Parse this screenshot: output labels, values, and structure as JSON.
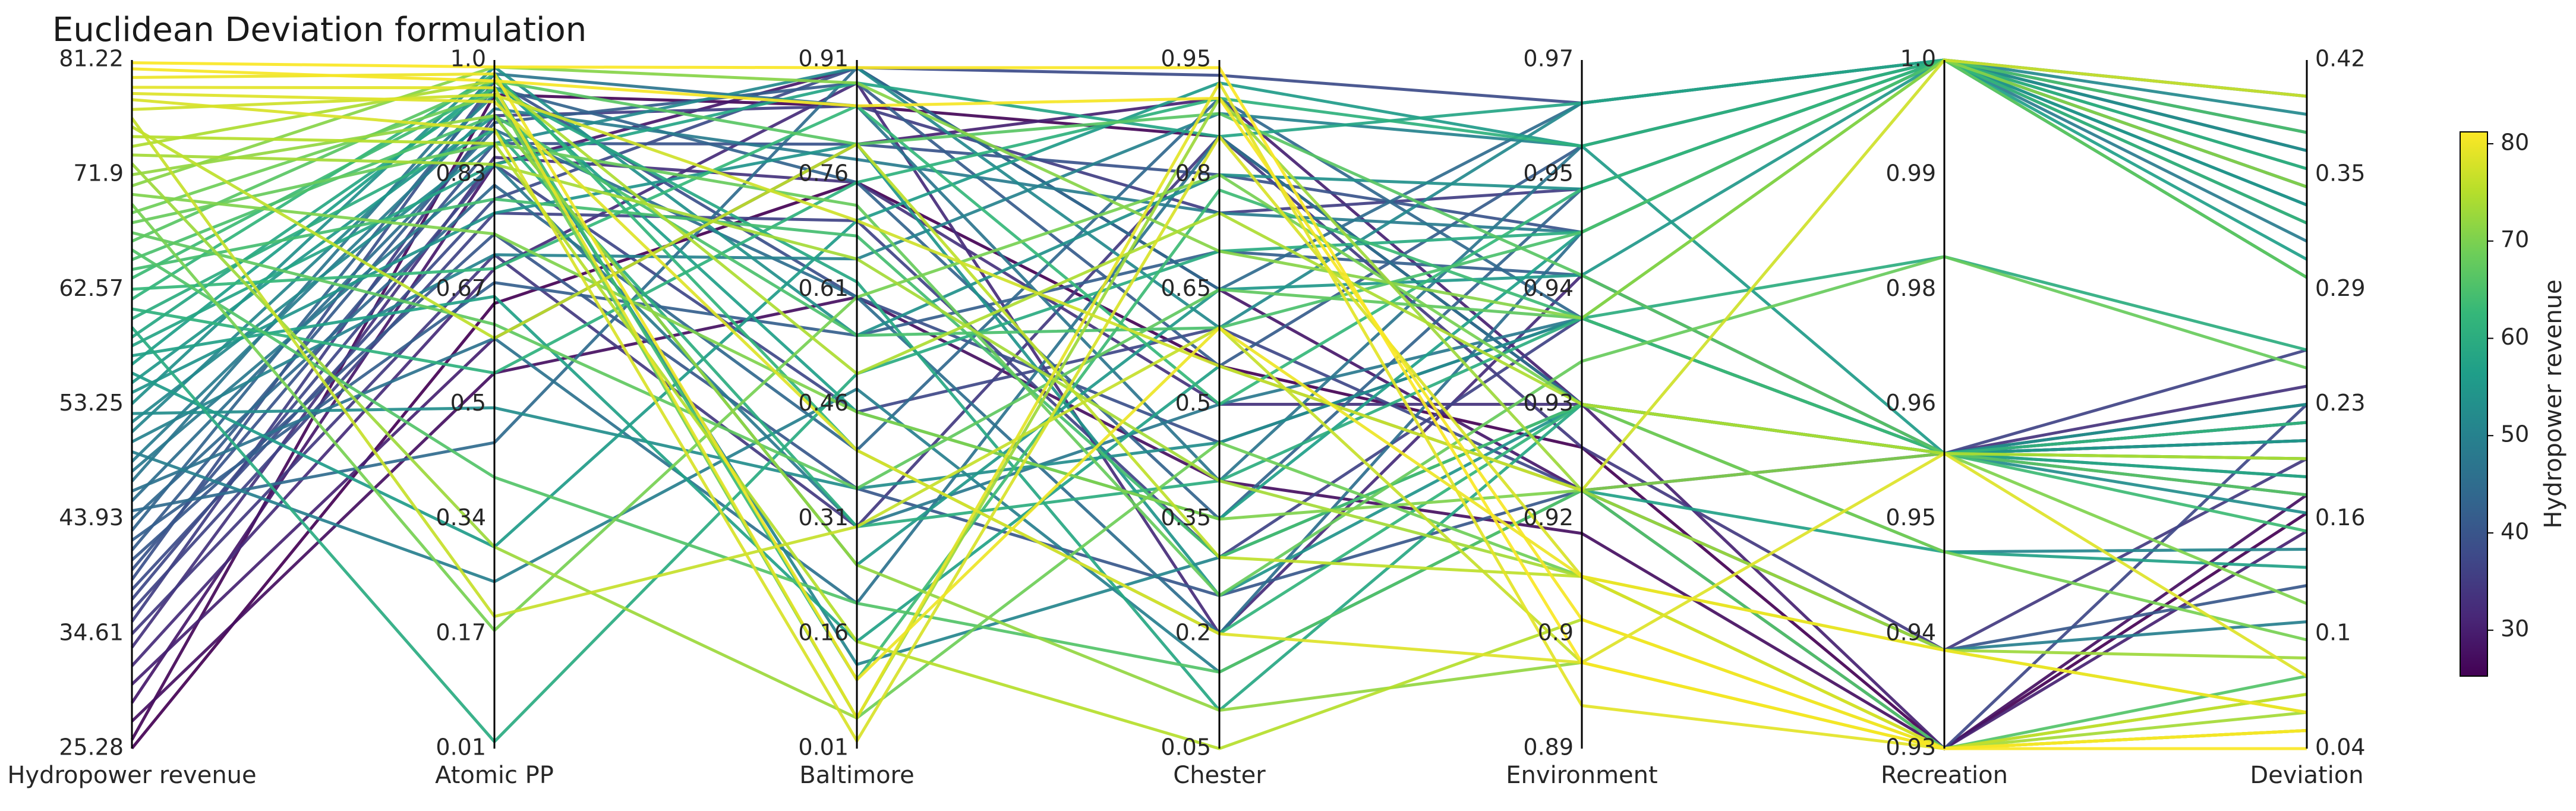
{
  "chart_data": {
    "type": "parallel_coordinates",
    "title": "Euclidean Deviation formulation",
    "color_by": "Hydropower revenue",
    "colormap": "viridis",
    "axes": [
      {
        "name": "Hydropower revenue",
        "ticks": [
          "81.22",
          "71.9",
          "62.57",
          "53.25",
          "43.93",
          "34.61",
          "25.28"
        ],
        "range": [
          25.28,
          81.22
        ]
      },
      {
        "name": "Atomic PP",
        "ticks": [
          "1.0",
          "0.83",
          "0.67",
          "0.5",
          "0.34",
          "0.17",
          "0.01"
        ],
        "range": [
          0.01,
          1.0
        ]
      },
      {
        "name": "Baltimore",
        "ticks": [
          "0.91",
          "0.76",
          "0.61",
          "0.46",
          "0.31",
          "0.16",
          "0.01"
        ],
        "range": [
          0.01,
          0.91
        ]
      },
      {
        "name": "Chester",
        "ticks": [
          "0.95",
          "0.8",
          "0.65",
          "0.5",
          "0.35",
          "0.2",
          "0.05"
        ],
        "range": [
          0.05,
          0.95
        ]
      },
      {
        "name": "Environment",
        "ticks": [
          "0.97",
          "0.95",
          "0.94",
          "0.93",
          "0.92",
          "0.9",
          "0.89"
        ],
        "range": [
          0.89,
          0.97
        ]
      },
      {
        "name": "Recreation",
        "ticks": [
          "1.0",
          "0.99",
          "0.98",
          "0.96",
          "0.95",
          "0.94",
          "0.93"
        ],
        "range": [
          0.93,
          1.0
        ]
      },
      {
        "name": "Deviation",
        "ticks": [
          "0.42",
          "0.35",
          "0.29",
          "0.23",
          "0.16",
          "0.1",
          "0.04"
        ],
        "range": [
          0.04,
          0.42
        ]
      }
    ],
    "colorbar": {
      "label": "Hydropower revenue",
      "ticks": [
        "80",
        "70",
        "60",
        "50",
        "40",
        "30"
      ],
      "range": [
        25.28,
        81.22
      ]
    },
    "series": [
      {
        "values": [
          81.0,
          0.99,
          0.9,
          0.94,
          0.9,
          0.93,
          0.04
        ]
      },
      {
        "values": [
          80.5,
          0.97,
          0.85,
          0.9,
          0.905,
          0.93,
          0.05
        ]
      },
      {
        "values": [
          79.8,
          0.98,
          0.1,
          0.6,
          0.91,
          0.94,
          0.06
        ]
      },
      {
        "values": [
          79.0,
          0.96,
          0.05,
          0.92,
          0.895,
          0.93,
          0.05
        ]
      },
      {
        "values": [
          78.5,
          0.94,
          0.4,
          0.2,
          0.9,
          0.96,
          0.08
        ]
      },
      {
        "values": [
          78.0,
          0.9,
          0.02,
          0.85,
          0.91,
          0.93,
          0.05
        ]
      },
      {
        "values": [
          77.2,
          0.95,
          0.7,
          0.55,
          0.92,
          1.0,
          0.4
        ]
      },
      {
        "values": [
          76.5,
          0.2,
          0.3,
          0.6,
          0.9,
          0.93,
          0.07
        ]
      },
      {
        "values": [
          75.8,
          0.6,
          0.8,
          0.3,
          0.91,
          0.94,
          0.06
        ]
      },
      {
        "values": [
          75.0,
          0.88,
          0.15,
          0.05,
          0.905,
          0.93,
          0.05
        ]
      },
      {
        "values": [
          74.2,
          0.97,
          0.5,
          0.75,
          0.93,
          0.96,
          0.2
        ]
      },
      {
        "values": [
          73.5,
          0.85,
          0.65,
          0.4,
          0.91,
          0.93,
          0.06
        ]
      },
      {
        "values": [
          72.8,
          0.3,
          0.05,
          0.9,
          0.92,
          0.94,
          0.09
        ]
      },
      {
        "values": [
          71.9,
          0.92,
          0.25,
          0.1,
          0.9,
          0.93,
          0.05
        ]
      },
      {
        "values": [
          71.0,
          0.99,
          0.88,
          0.7,
          0.94,
          1.0,
          0.35
        ]
      },
      {
        "values": [
          70.3,
          0.75,
          0.45,
          0.35,
          0.92,
          0.96,
          0.12
        ]
      },
      {
        "values": [
          69.5,
          0.18,
          0.6,
          0.8,
          0.93,
          0.95,
          0.1
        ]
      },
      {
        "values": [
          68.8,
          0.95,
          0.05,
          0.45,
          0.91,
          0.93,
          0.07
        ]
      },
      {
        "values": [
          68.0,
          0.88,
          0.72,
          0.25,
          0.935,
          0.98,
          0.25
        ]
      },
      {
        "values": [
          67.2,
          0.62,
          0.35,
          0.65,
          0.94,
          1.0,
          0.3
        ]
      },
      {
        "values": [
          66.5,
          0.97,
          0.8,
          0.88,
          0.945,
          0.96,
          0.18
        ]
      },
      {
        "values": [
          65.8,
          0.4,
          0.2,
          0.15,
          0.92,
          0.93,
          0.08
        ]
      },
      {
        "values": [
          65.0,
          0.92,
          0.55,
          0.6,
          0.95,
          1.0,
          0.38
        ]
      },
      {
        "values": [
          64.2,
          0.8,
          0.68,
          0.3,
          0.93,
          0.96,
          0.2
        ]
      },
      {
        "values": [
          63.5,
          0.96,
          0.1,
          0.78,
          0.94,
          0.96,
          0.16
        ]
      },
      {
        "values": [
          62.6,
          0.7,
          0.85,
          0.5,
          0.955,
          1.0,
          0.33
        ]
      },
      {
        "values": [
          61.8,
          0.98,
          0.4,
          0.2,
          0.93,
          0.96,
          0.22
        ]
      },
      {
        "values": [
          61.0,
          0.55,
          0.75,
          0.9,
          0.96,
          1.0,
          0.36
        ]
      },
      {
        "values": [
          60.2,
          0.9,
          0.3,
          0.4,
          0.94,
          0.98,
          0.26
        ]
      },
      {
        "values": [
          59.5,
          0.02,
          0.5,
          0.7,
          0.95,
          1.0,
          0.3
        ]
      },
      {
        "values": [
          58.7,
          0.96,
          0.62,
          0.1,
          0.93,
          0.96,
          0.19
        ]
      },
      {
        "values": [
          58.0,
          0.85,
          0.88,
          0.85,
          0.965,
          1.0,
          0.4
        ]
      },
      {
        "values": [
          57.2,
          0.66,
          0.15,
          0.55,
          0.92,
          0.95,
          0.14
        ]
      },
      {
        "values": [
          56.5,
          0.97,
          0.45,
          0.35,
          0.95,
          1.0,
          0.31
        ]
      },
      {
        "values": [
          55.8,
          0.3,
          0.7,
          0.92,
          0.96,
          0.96,
          0.21
        ]
      },
      {
        "values": [
          55.0,
          0.92,
          0.25,
          0.65,
          0.945,
          1.0,
          0.34
        ]
      },
      {
        "values": [
          54.2,
          0.78,
          0.8,
          0.25,
          0.93,
          0.96,
          0.23
        ]
      },
      {
        "values": [
          53.3,
          0.99,
          0.55,
          0.8,
          0.955,
          1.0,
          0.37
        ]
      },
      {
        "values": [
          52.5,
          0.5,
          0.35,
          0.45,
          0.94,
          0.96,
          0.17
        ]
      },
      {
        "values": [
          51.8,
          0.88,
          0.9,
          0.6,
          0.965,
          1.0,
          0.39
        ]
      },
      {
        "values": [
          51.0,
          0.95,
          0.12,
          0.3,
          0.93,
          0.95,
          0.15
        ]
      },
      {
        "values": [
          50.2,
          0.72,
          0.65,
          0.88,
          0.96,
          1.0,
          0.35
        ]
      },
      {
        "values": [
          49.4,
          0.25,
          0.48,
          0.15,
          0.92,
          0.94,
          0.11
        ]
      },
      {
        "values": [
          48.6,
          0.93,
          0.78,
          0.75,
          0.95,
          1.0,
          0.32
        ]
      },
      {
        "values": [
          47.8,
          0.85,
          0.3,
          0.5,
          0.94,
          0.96,
          0.2
        ]
      },
      {
        "values": [
          47.0,
          0.98,
          0.85,
          0.4,
          0.96,
          1.0,
          0.36
        ]
      },
      {
        "values": [
          46.2,
          0.6,
          0.2,
          0.85,
          0.93,
          0.96,
          0.19
        ]
      },
      {
        "values": [
          45.4,
          0.9,
          0.6,
          0.2,
          0.95,
          1.0,
          0.3
        ]
      },
      {
        "values": [
          44.6,
          0.45,
          0.9,
          0.65,
          0.965,
          1.0,
          0.4
        ]
      },
      {
        "values": [
          43.9,
          0.82,
          0.4,
          0.9,
          0.94,
          0.96,
          0.22
        ]
      },
      {
        "values": [
          43.0,
          0.96,
          0.75,
          0.35,
          0.955,
          1.0,
          0.34
        ]
      },
      {
        "values": [
          42.2,
          0.68,
          0.55,
          0.7,
          0.945,
          0.96,
          0.18
        ]
      },
      {
        "values": [
          41.4,
          0.91,
          0.88,
          0.55,
          0.96,
          1.0,
          0.38
        ]
      },
      {
        "values": [
          40.6,
          0.75,
          0.35,
          0.25,
          0.92,
          0.94,
          0.13
        ]
      },
      {
        "values": [
          39.8,
          0.88,
          0.8,
          0.8,
          0.95,
          1.0,
          0.33
        ]
      },
      {
        "values": [
          39.0,
          0.97,
          0.6,
          0.45,
          0.94,
          0.96,
          0.21
        ]
      },
      {
        "values": [
          38.2,
          0.8,
          0.9,
          0.93,
          0.965,
          1.0,
          0.37
        ]
      },
      {
        "values": [
          37.4,
          0.85,
          0.45,
          0.6,
          0.92,
          0.93,
          0.23
        ]
      },
      {
        "values": [
          36.5,
          0.78,
          0.7,
          0.3,
          0.94,
          0.96,
          0.26
        ]
      },
      {
        "values": [
          35.6,
          0.92,
          0.85,
          0.75,
          0.955,
          1.0,
          0.35
        ]
      },
      {
        "values": [
          34.6,
          0.72,
          0.3,
          0.85,
          0.925,
          0.94,
          0.2
        ]
      },
      {
        "values": [
          33.5,
          0.86,
          0.75,
          0.5,
          0.93,
          0.96,
          0.24
        ]
      },
      {
        "values": [
          32.0,
          0.7,
          0.88,
          0.2,
          0.945,
          0.96,
          0.22
        ]
      },
      {
        "values": [
          30.5,
          0.6,
          0.8,
          0.9,
          0.93,
          0.93,
          0.16
        ]
      },
      {
        "values": [
          29.0,
          0.85,
          0.9,
          0.65,
          0.92,
          0.96,
          0.23
        ]
      },
      {
        "values": [
          27.5,
          0.55,
          0.6,
          0.4,
          0.915,
          0.93,
          0.18
        ]
      },
      {
        "values": [
          26.0,
          0.95,
          0.85,
          0.85,
          0.93,
          0.96,
          0.21
        ]
      },
      {
        "values": [
          25.3,
          0.65,
          0.75,
          0.55,
          0.925,
          0.93,
          0.17
        ]
      }
    ]
  }
}
